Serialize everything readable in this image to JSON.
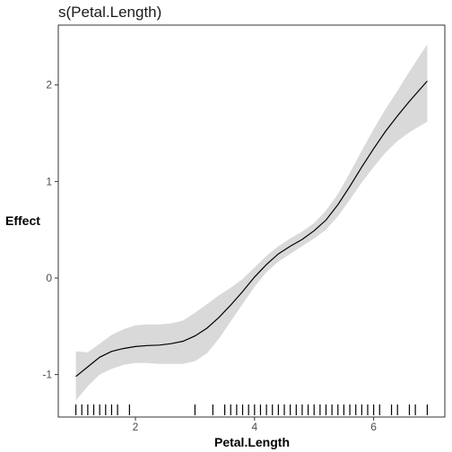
{
  "chart_data": {
    "type": "line",
    "title": "s(Petal.Length)",
    "xlabel": "Petal.Length",
    "ylabel": "Effect",
    "xlim": [
      0.705,
      7.195
    ],
    "ylim": [
      -1.44,
      2.62
    ],
    "xticks": [
      2,
      4,
      6
    ],
    "yticks": [
      -1,
      0,
      1,
      2
    ],
    "xtick_labels": [
      "2",
      "4",
      "6"
    ],
    "ytick_labels": [
      "-1",
      "0",
      "1",
      "2"
    ],
    "grid": false,
    "legend": "none",
    "colors": {
      "line": "#000000",
      "band": "#d9d9d9",
      "rug": "#000000",
      "panel_border": "#333333"
    },
    "series": [
      {
        "x": [
          1.0,
          1.2,
          1.4,
          1.6,
          1.8,
          2.0,
          2.2,
          2.4,
          2.6,
          2.8,
          3.0,
          3.2,
          3.4,
          3.6,
          3.8,
          4.0,
          4.2,
          4.4,
          4.6,
          4.8,
          5.0,
          5.2,
          5.4,
          5.6,
          5.8,
          6.0,
          6.2,
          6.4,
          6.6,
          6.9
        ],
        "y": [
          -1.02,
          -0.92,
          -0.82,
          -0.76,
          -0.73,
          -0.71,
          -0.7,
          -0.695,
          -0.68,
          -0.655,
          -0.6,
          -0.52,
          -0.41,
          -0.28,
          -0.14,
          0.01,
          0.14,
          0.25,
          0.33,
          0.4,
          0.49,
          0.6,
          0.76,
          0.95,
          1.15,
          1.34,
          1.52,
          1.68,
          1.83,
          2.04
        ],
        "lower": [
          -1.27,
          -1.12,
          -1.0,
          -0.94,
          -0.9,
          -0.88,
          -0.88,
          -0.89,
          -0.89,
          -0.89,
          -0.86,
          -0.78,
          -0.63,
          -0.45,
          -0.27,
          -0.09,
          0.06,
          0.17,
          0.25,
          0.33,
          0.41,
          0.5,
          0.64,
          0.81,
          0.99,
          1.15,
          1.3,
          1.42,
          1.51,
          1.62
        ],
        "upper": [
          -0.76,
          -0.77,
          -0.68,
          -0.59,
          -0.53,
          -0.49,
          -0.48,
          -0.48,
          -0.47,
          -0.44,
          -0.36,
          -0.27,
          -0.18,
          -0.1,
          -0.01,
          0.11,
          0.23,
          0.33,
          0.41,
          0.48,
          0.57,
          0.7,
          0.87,
          1.09,
          1.32,
          1.54,
          1.75,
          1.94,
          2.14,
          2.42
        ]
      }
    ],
    "rug": [
      1.0,
      1.1,
      1.2,
      1.3,
      1.4,
      1.5,
      1.6,
      1.7,
      1.9,
      3.0,
      3.3,
      3.5,
      3.6,
      3.7,
      3.8,
      3.9,
      4.0,
      4.1,
      4.2,
      4.3,
      4.4,
      4.5,
      4.6,
      4.7,
      4.8,
      4.9,
      5.0,
      5.1,
      5.2,
      5.3,
      5.4,
      5.5,
      5.6,
      5.7,
      5.8,
      5.9,
      6.0,
      6.1,
      6.3,
      6.4,
      6.6,
      6.7,
      6.9
    ]
  }
}
